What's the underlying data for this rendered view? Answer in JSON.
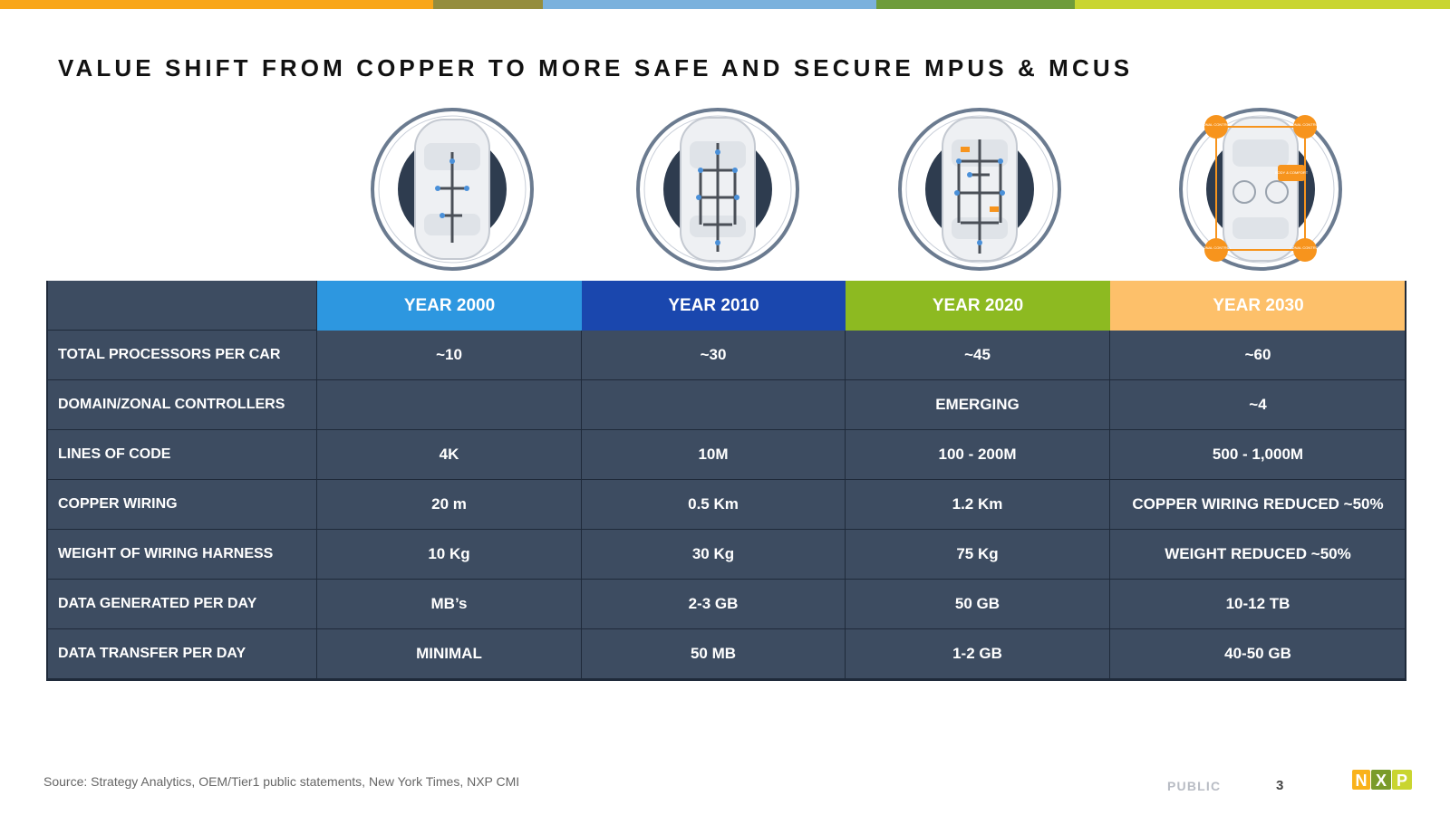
{
  "slide": {
    "title": "VALUE SHIFT FROM COPPER TO MORE SAFE AND SECURE MPUS & MCUS",
    "source": "Source: Strategy Analytics, OEM/Tier1 public statements, New York Times, NXP CMI",
    "classification": "PUBLIC",
    "page_number": "3",
    "logo": "NXP"
  },
  "colors": {
    "year_2000": "#2d97e0",
    "year_2010": "#1a47ae",
    "year_2020": "#8dba21",
    "year_2030": "#fdc06a",
    "table_body": "#3d4c61"
  },
  "car_labels": {
    "zonal_control": "ZONAL CONTROL",
    "body_comfort": "BODY & COMFORT"
  },
  "table": {
    "headers": [
      "YEAR 2000",
      "YEAR 2010",
      "YEAR 2020",
      "YEAR 2030"
    ],
    "rows": [
      {
        "label": "TOTAL PROCESSORS PER CAR",
        "values": [
          "~10",
          "~30",
          "~45",
          "~60"
        ]
      },
      {
        "label": "DOMAIN/ZONAL CONTROLLERS",
        "values": [
          "",
          "",
          "EMERGING",
          "~4"
        ]
      },
      {
        "label": "LINES OF CODE",
        "values": [
          "4K",
          "10M",
          "100 - 200M",
          "500 - 1,000M"
        ]
      },
      {
        "label": "COPPER WIRING",
        "values": [
          "20 m",
          "0.5 Km",
          "1.2 Km",
          "COPPER WIRING REDUCED ~50%"
        ]
      },
      {
        "label": "WEIGHT OF WIRING HARNESS",
        "values": [
          "10 Kg",
          "30 Kg",
          "75 Kg",
          "WEIGHT REDUCED ~50%"
        ]
      },
      {
        "label": "DATA GENERATED PER DAY",
        "values": [
          "MB’s",
          "2-3 GB",
          "50 GB",
          "10-12 TB"
        ]
      },
      {
        "label": "DATA TRANSFER PER DAY",
        "values": [
          "MINIMAL",
          "50 MB",
          "1-2 GB",
          "40-50 GB"
        ]
      }
    ]
  }
}
